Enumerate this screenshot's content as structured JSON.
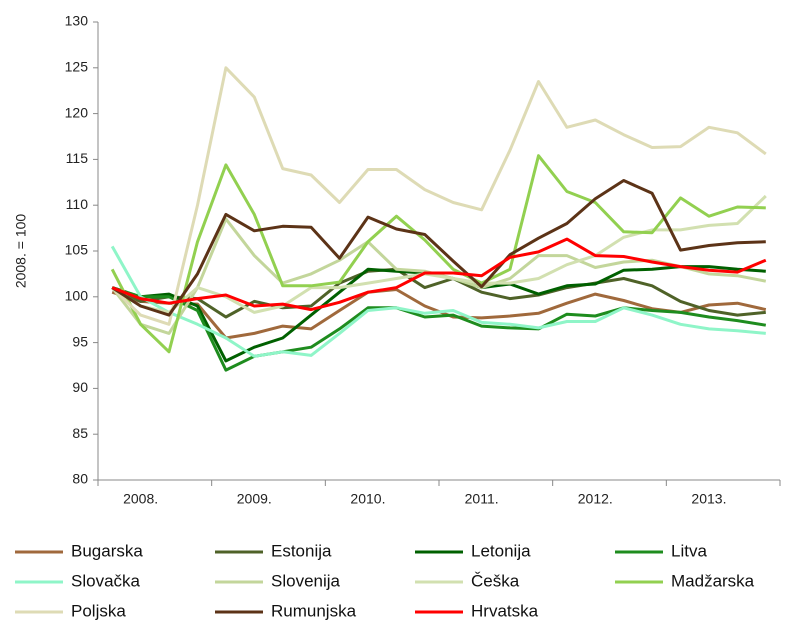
{
  "chart_data": {
    "type": "line",
    "y_label": "2008. = 100",
    "categories": [
      null,
      "2008.",
      null,
      null,
      null,
      "2009.",
      null,
      null,
      null,
      "2010.",
      null,
      null,
      null,
      "2011.",
      null,
      null,
      null,
      "2012.",
      null,
      null,
      null,
      "2013.",
      null,
      null
    ],
    "ylim": [
      80,
      130
    ],
    "yticks": [
      80,
      85,
      90,
      95,
      100,
      105,
      110,
      115,
      120,
      125,
      130
    ],
    "grid": false,
    "legend": "bottom",
    "series": [
      {
        "name": "Bugarska",
        "color": "#a0693c",
        "values": [
          100.5,
          99.5,
          99.3,
          99.2,
          95.5,
          96,
          96.8,
          96.5,
          98.5,
          100.5,
          100.8,
          99,
          97.8,
          97.7,
          97.9,
          98.2,
          99.3,
          100.3,
          99.6,
          98.7,
          98.3,
          99.1,
          99.3,
          98.6
        ]
      },
      {
        "name": "Estonija",
        "color": "#4f6228",
        "values": [
          101,
          99.5,
          100,
          99.8,
          97.8,
          99.5,
          98.8,
          99,
          101.5,
          102.8,
          103,
          101,
          102,
          100.5,
          99.8,
          100.2,
          101,
          101.5,
          102,
          101.2,
          99.5,
          98.5,
          98,
          98.3
        ]
      },
      {
        "name": "Letonija",
        "color": "#006000",
        "values": [
          101,
          100,
          100.3,
          99,
          93,
          94.5,
          95.5,
          98,
          100.5,
          103,
          102.8,
          102.6,
          102,
          101,
          101.4,
          100.3,
          101.2,
          101.4,
          102.9,
          103,
          103.3,
          103.3,
          103,
          102.8
        ]
      },
      {
        "name": "Litva",
        "color": "#1e8c1e",
        "values": [
          101,
          100,
          100,
          98.5,
          92,
          93.5,
          94,
          94.5,
          96.5,
          98.8,
          98.8,
          97.8,
          98,
          96.8,
          96.6,
          96.5,
          98.1,
          97.9,
          98.8,
          98.5,
          98.3,
          97.8,
          97.4,
          96.9
        ]
      },
      {
        "name": "Slovačka",
        "color": "#8ff5c8",
        "values": [
          105.5,
          100,
          98.3,
          97,
          95.5,
          93.5,
          94,
          93.6,
          96,
          98.5,
          98.8,
          98.2,
          98.5,
          97.2,
          97,
          96.6,
          97.3,
          97.3,
          98.8,
          98,
          97,
          96.5,
          96.3,
          96
        ]
      },
      {
        "name": "Slovenija",
        "color": "#c3d69b",
        "values": [
          101,
          97,
          96,
          101,
          108.5,
          104.5,
          101.5,
          102.5,
          104,
          106,
          103,
          102.8,
          102,
          101,
          102,
          104.5,
          104.5,
          103.2,
          103.8,
          104,
          103.3,
          102.5,
          102.3,
          101.7
        ]
      },
      {
        "name": "Češka",
        "color": "#d2e0b0",
        "values": [
          101,
          99,
          98.3,
          101,
          100,
          98.3,
          99,
          101,
          101,
          101.5,
          102,
          102.5,
          102,
          101.5,
          101.5,
          102,
          103.5,
          104.5,
          106.5,
          107.3,
          107.3,
          107.8,
          108,
          111
        ]
      },
      {
        "name": "Madžarska",
        "color": "#92d050",
        "values": [
          103,
          97,
          94,
          106,
          114.4,
          109,
          101.2,
          101.2,
          101.6,
          106,
          108.8,
          106.2,
          103,
          101.5,
          103,
          115.4,
          111.5,
          110.3,
          107.1,
          107,
          110.8,
          108.8,
          109.8,
          109.7
        ]
      },
      {
        "name": "Poljska",
        "color": "#dedbb5",
        "values": [
          101,
          98,
          97,
          110,
          125,
          121.8,
          114,
          113.3,
          110.3,
          113.9,
          113.9,
          111.7,
          110.3,
          109.5,
          116,
          123.5,
          118.5,
          119.3,
          117.7,
          116.3,
          116.4,
          118.5,
          117.9,
          115.6
        ]
      },
      {
        "name": "Rumunjska",
        "color": "#5c3317",
        "values": [
          101,
          99,
          98,
          102.5,
          109,
          107.2,
          107.7,
          107.6,
          104.2,
          108.7,
          107.4,
          106.8,
          103.9,
          101.1,
          104.6,
          106.4,
          108,
          110.7,
          112.7,
          111.3,
          105.1,
          105.6,
          105.9,
          106
        ]
      },
      {
        "name": "Hrvatska",
        "color": "#ff0000",
        "values": [
          101,
          99.8,
          99.3,
          99.8,
          100.2,
          99,
          99.2,
          98.6,
          99.4,
          100.5,
          101,
          102.6,
          102.6,
          102.3,
          104.3,
          104.9,
          106.3,
          104.5,
          104.4,
          103.8,
          103.3,
          102.9,
          102.7,
          104
        ]
      }
    ]
  }
}
